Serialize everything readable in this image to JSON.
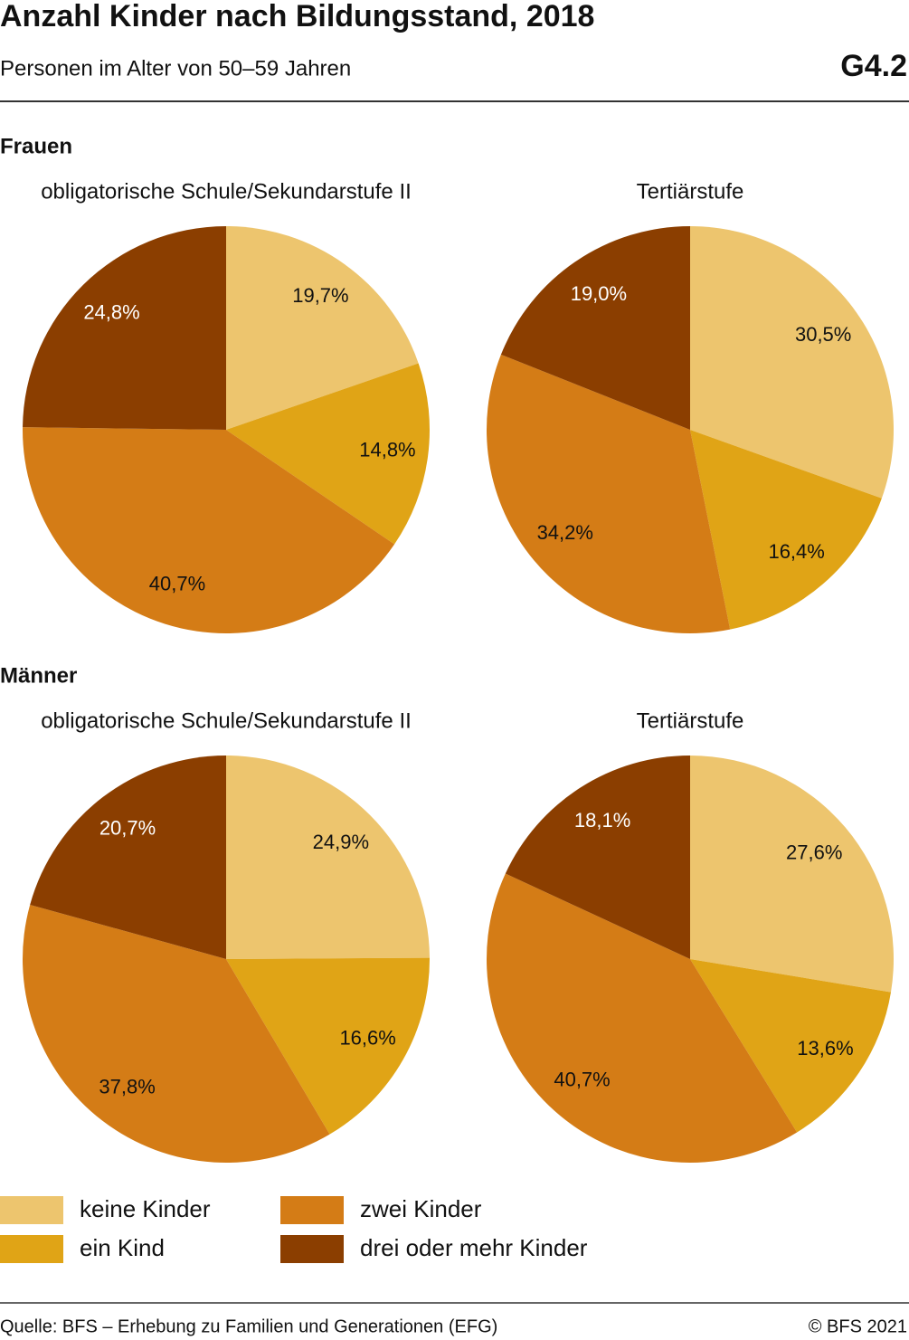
{
  "title": "Anzahl Kinder nach Bildungsstand, 2018",
  "subtitle": "Personen im Alter von 50–59 Jahren",
  "code": "G4.2",
  "groups": [
    "Frauen",
    "Männer"
  ],
  "legend": {
    "labels": [
      "keine Kinder",
      "ein Kind",
      "zwei Kinder",
      "drei oder mehr Kinder"
    ],
    "colors": [
      "#edc56e",
      "#e0a416",
      "#d47c16",
      "#8b3e00"
    ]
  },
  "source": "Quelle: BFS – Erhebung zu Familien und Generationen (EFG)",
  "copyright": "© BFS 2021",
  "chart_data": [
    {
      "type": "pie",
      "title": "obligatorische Schule/Sekundarstufe II",
      "categories": [
        "keine Kinder",
        "ein Kind",
        "zwei Kinder",
        "drei oder mehr Kinder"
      ],
      "values": [
        19.7,
        14.8,
        40.7,
        24.8
      ],
      "value_labels": [
        "19,7%",
        "14,8%",
        "40,7%",
        "24,8%"
      ]
    },
    {
      "type": "pie",
      "title": "Tertiärstufe",
      "categories": [
        "keine Kinder",
        "ein Kind",
        "zwei Kinder",
        "drei oder mehr Kinder"
      ],
      "values": [
        30.5,
        16.4,
        34.2,
        19.0
      ],
      "value_labels": [
        "30,5%",
        "16,4%",
        "34,2%",
        "19,0%"
      ]
    },
    {
      "type": "pie",
      "title": "obligatorische Schule/Sekundarstufe II",
      "categories": [
        "keine Kinder",
        "ein Kind",
        "zwei Kinder",
        "drei oder mehr Kinder"
      ],
      "values": [
        24.9,
        16.6,
        37.8,
        20.7
      ],
      "value_labels": [
        "24,9%",
        "16,6%",
        "37,8%",
        "20,7%"
      ]
    },
    {
      "type": "pie",
      "title": "Tertiärstufe",
      "categories": [
        "keine Kinder",
        "ein Kind",
        "zwei Kinder",
        "drei oder mehr Kinder"
      ],
      "values": [
        27.6,
        13.6,
        40.7,
        18.1
      ],
      "value_labels": [
        "27,6%",
        "13,6%",
        "40,7%",
        "18,1%"
      ]
    }
  ]
}
